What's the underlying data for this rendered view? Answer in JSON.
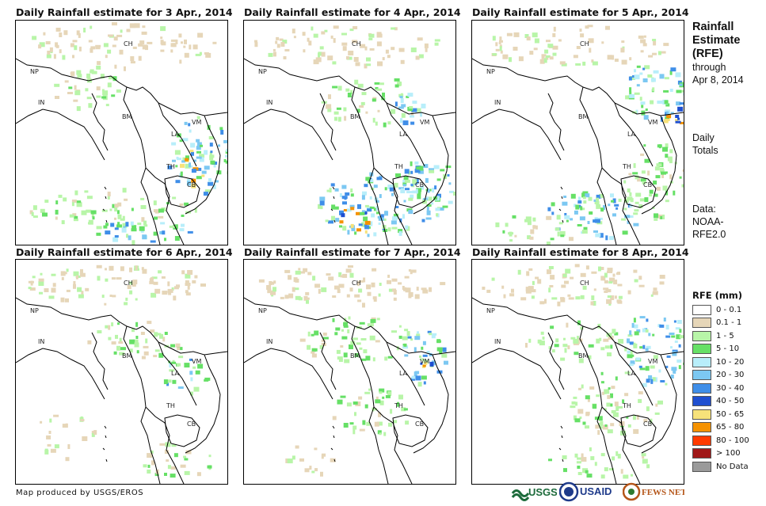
{
  "panels": [
    {
      "title": "Daily Rainfall estimate for 3 Apr., 2014"
    },
    {
      "title": "Daily Rainfall estimate for 4 Apr., 2014"
    },
    {
      "title": "Daily Rainfall estimate for 5 Apr., 2014"
    },
    {
      "title": "Daily Rainfall estimate for 6 Apr., 2014"
    },
    {
      "title": "Daily Rainfall estimate for 7 Apr., 2014"
    },
    {
      "title": "Daily Rainfall estimate for 8 Apr., 2014"
    }
  ],
  "country_labels": {
    "ch": "CH",
    "np": "NP",
    "in": "IN",
    "bm": "BM",
    "la": "LA",
    "vm": "VM",
    "th": "TH",
    "cb": "CB"
  },
  "sidebar": {
    "title_line1": "Rainfall",
    "title_line2": "Estimate",
    "title_line3": "(RFE)",
    "through": "through",
    "date": "Apr 8, 2014",
    "daily": "Daily",
    "totals": "Totals",
    "data_label": "Data:",
    "source1": "NOAA-",
    "source2": "RFE2.0"
  },
  "legend": {
    "title": "RFE (mm)",
    "items": [
      {
        "label": "0 - 0.1",
        "color": "#ffffff"
      },
      {
        "label": "0.1 - 1",
        "color": "#e6d6b8"
      },
      {
        "label": "1 - 5",
        "color": "#b8f5a8"
      },
      {
        "label": "5 - 10",
        "color": "#66e066"
      },
      {
        "label": "10 - 20",
        "color": "#b8eefa"
      },
      {
        "label": "20 - 30",
        "color": "#7cc8f2"
      },
      {
        "label": "30 - 40",
        "color": "#3f8ee8"
      },
      {
        "label": "40 - 50",
        "color": "#1f4fd0"
      },
      {
        "label": "50 - 65",
        "color": "#f7e27a"
      },
      {
        "label": "65 - 80",
        "color": "#f59200"
      },
      {
        "label": "80 - 100",
        "color": "#ff3a00"
      },
      {
        "label": "> 100",
        "color": "#a01818"
      },
      {
        "label": "No Data",
        "color": "#9a9a9a"
      }
    ]
  },
  "footer": {
    "credit": "Map produced by USGS/EROS",
    "logo_usgs": "USGS",
    "logo_usaid": "USAID",
    "logo_fews": "FEWS NET"
  }
}
